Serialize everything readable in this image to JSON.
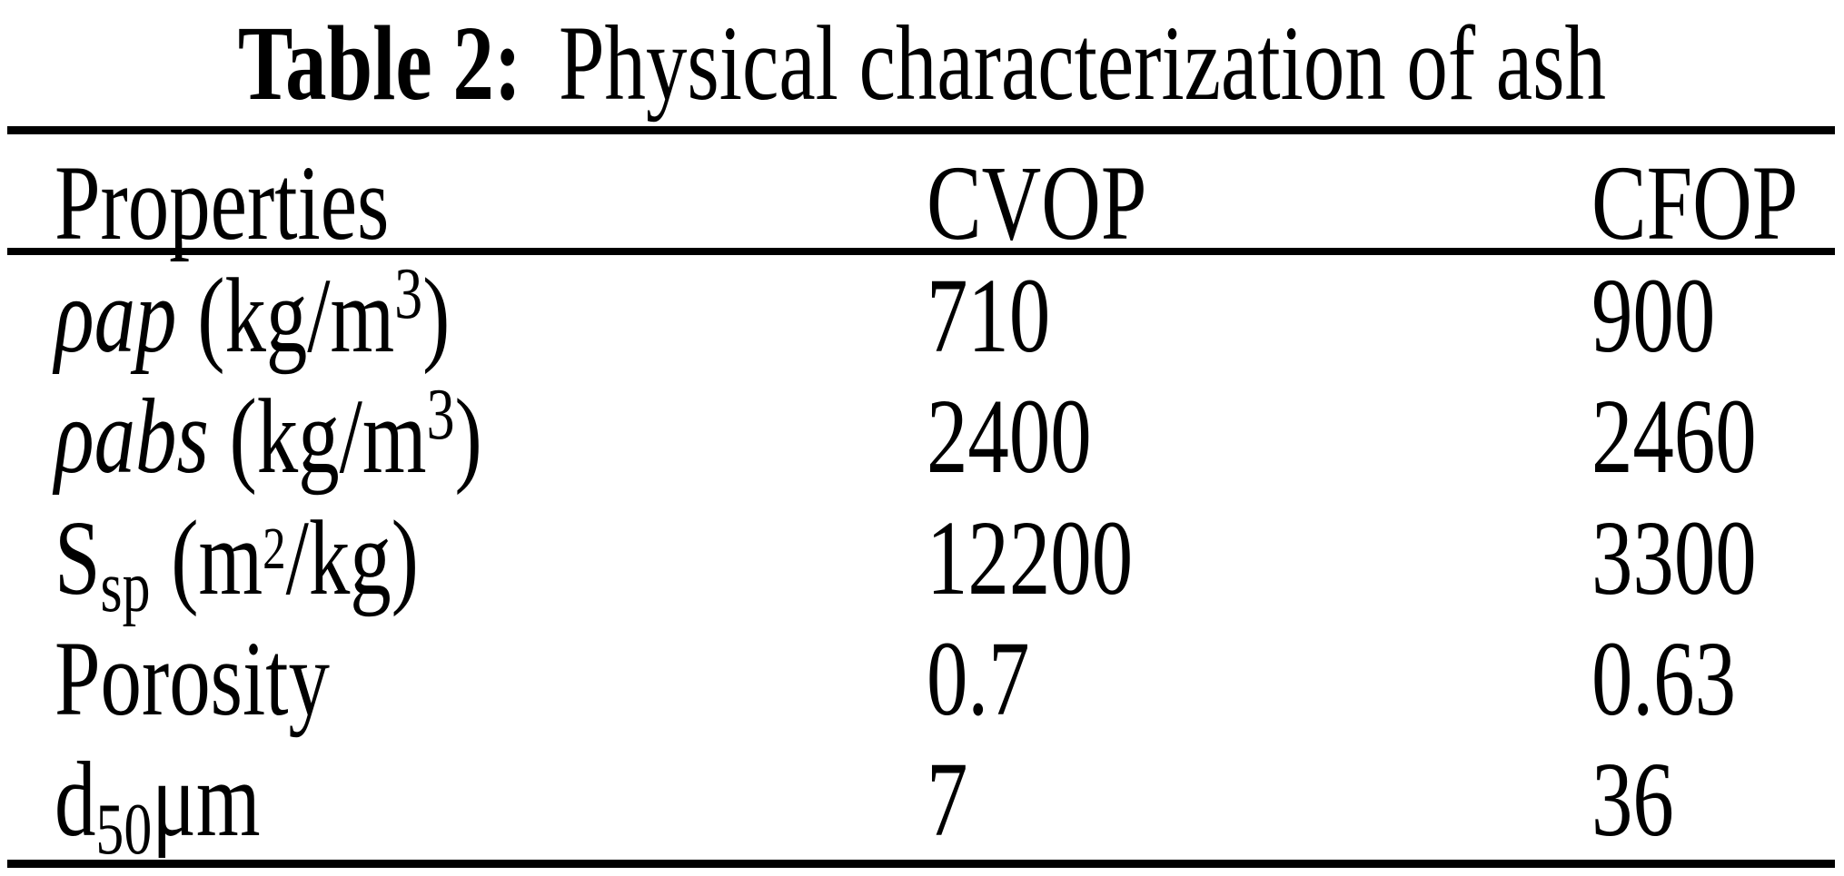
{
  "colors": {
    "ink": "#000000",
    "paper": "#ffffff"
  },
  "title": {
    "label_bold": "Table 2:",
    "label_rest": "Physical characterization of ash"
  },
  "table": {
    "columns": {
      "property": "Properties",
      "cvop": "CVOP",
      "cfop": "CFOP"
    },
    "rows": [
      {
        "sym": "ρap",
        "unit_open": " (kg/m",
        "sup": "3",
        "unit_close": ")",
        "cvop": "710",
        "cfop": "900"
      },
      {
        "sym": "ρabs",
        "unit_open": " (kg/m",
        "sup": "3",
        "unit_close": ")",
        "cvop": "2400",
        "cfop": "2460"
      },
      {
        "sym": "S",
        "sub": "sp",
        "unit_open": " (m",
        "sup": "2",
        "unit_close": "/kg)",
        "cvop": "12200",
        "cfop": "3300"
      },
      {
        "sym": "Porosity",
        "cvop": "0.7",
        "cfop": "0.63"
      },
      {
        "sym": "d",
        "sub": "50",
        "unit_close": "μm",
        "cvop": "7",
        "cfop": "36"
      }
    ]
  }
}
